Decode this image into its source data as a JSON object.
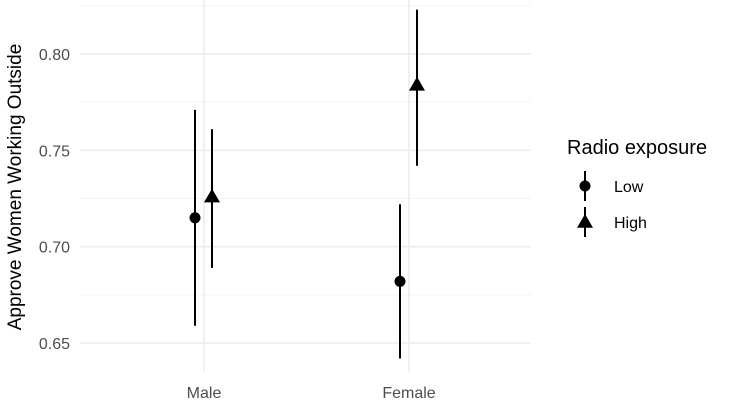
{
  "chart_data": {
    "type": "pointrange",
    "categories": [
      "Male",
      "Female"
    ],
    "ylabel": "Approve Women Working Outside",
    "ylim": [
      0.635,
      0.828
    ],
    "yticks": [
      0.65,
      0.7,
      0.75,
      0.8
    ],
    "ytick_labels": [
      "0.65",
      "0.70",
      "0.75",
      "0.80"
    ],
    "grid": true,
    "legend": {
      "title": "Radio exposure",
      "placement": "right"
    },
    "series": [
      {
        "name": "Low",
        "shape": "circle",
        "values": [
          0.715,
          0.682
        ],
        "lower": [
          0.659,
          0.642
        ],
        "upper": [
          0.771,
          0.722
        ]
      },
      {
        "name": "High",
        "shape": "triangle",
        "values": [
          0.726,
          0.784
        ],
        "lower": [
          0.689,
          0.742
        ],
        "upper": [
          0.761,
          0.823
        ]
      }
    ],
    "colors": {
      "mark": "#000000",
      "grid": "#ebebeb",
      "tick_text": "#4d4d4d"
    }
  }
}
